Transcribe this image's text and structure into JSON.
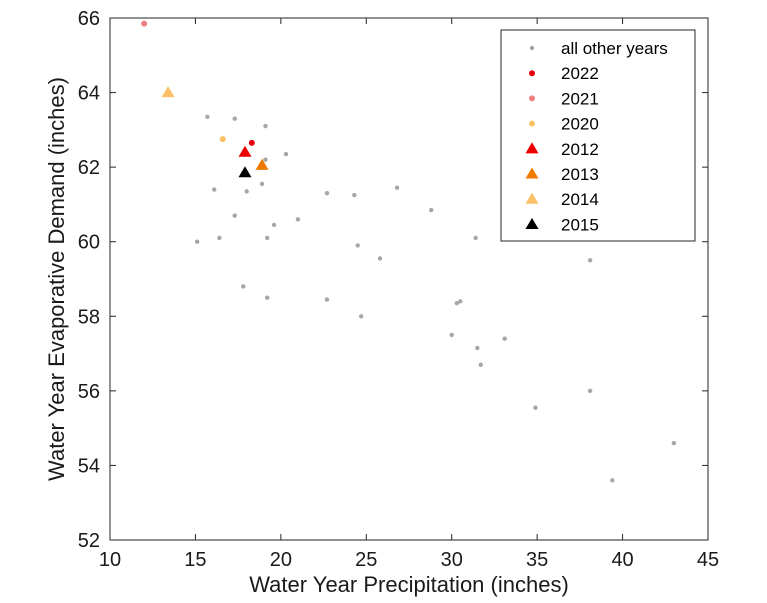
{
  "chart_data": {
    "type": "scatter",
    "xlabel": "Water Year Precipitation (inches)",
    "ylabel": "Water Year Evaporative Demand (inches)",
    "xlim": [
      10,
      45
    ],
    "ylim": [
      52,
      66
    ],
    "xticks": [
      10,
      15,
      20,
      25,
      30,
      35,
      40,
      45
    ],
    "yticks": [
      52,
      54,
      56,
      58,
      60,
      62,
      64,
      66
    ],
    "grid": false,
    "legend_position": "top-right",
    "series": [
      {
        "name": "all other years",
        "marker": "dot",
        "color": "#a6a6a6",
        "points": [
          [
            15.7,
            63.35
          ],
          [
            17.3,
            63.3
          ],
          [
            19.1,
            63.1
          ],
          [
            20.3,
            62.35
          ],
          [
            19.1,
            62.2
          ],
          [
            18.9,
            61.55
          ],
          [
            16.1,
            61.4
          ],
          [
            18.0,
            61.35
          ],
          [
            22.7,
            61.3
          ],
          [
            24.3,
            61.25
          ],
          [
            26.8,
            61.45
          ],
          [
            28.8,
            60.85
          ],
          [
            17.3,
            60.7
          ],
          [
            21.0,
            60.6
          ],
          [
            19.6,
            60.45
          ],
          [
            15.1,
            60.0
          ],
          [
            16.4,
            60.1
          ],
          [
            19.2,
            60.1
          ],
          [
            24.5,
            59.9
          ],
          [
            31.4,
            60.1
          ],
          [
            25.8,
            59.55
          ],
          [
            38.1,
            59.5
          ],
          [
            17.8,
            58.8
          ],
          [
            19.2,
            58.5
          ],
          [
            22.7,
            58.45
          ],
          [
            30.3,
            58.35
          ],
          [
            30.5,
            58.4
          ],
          [
            24.7,
            58.0
          ],
          [
            30.0,
            57.5
          ],
          [
            33.1,
            57.4
          ],
          [
            31.5,
            57.15
          ],
          [
            31.7,
            56.7
          ],
          [
            38.1,
            56.0
          ],
          [
            34.9,
            55.55
          ],
          [
            43.0,
            54.6
          ],
          [
            39.4,
            53.6
          ]
        ]
      },
      {
        "name": "2022",
        "marker": "dot",
        "color": "#e8000b",
        "points": [
          [
            18.3,
            62.65
          ]
        ]
      },
      {
        "name": "2021",
        "marker": "dot",
        "color": "#f08080",
        "points": [
          [
            12.0,
            65.85
          ]
        ]
      },
      {
        "name": "2020",
        "marker": "dot",
        "color": "#fbc165",
        "points": [
          [
            16.6,
            62.75
          ]
        ]
      },
      {
        "name": "2012",
        "marker": "triangle",
        "color": "#ee0000",
        "points": [
          [
            17.9,
            62.4
          ]
        ]
      },
      {
        "name": "2013",
        "marker": "triangle",
        "color": "#f07a00",
        "points": [
          [
            18.9,
            62.05
          ]
        ]
      },
      {
        "name": "2014",
        "marker": "triangle",
        "color": "#fbc168",
        "points": [
          [
            13.4,
            64.0
          ]
        ]
      },
      {
        "name": "2015",
        "marker": "triangle",
        "color": "#000000",
        "points": [
          [
            17.9,
            61.85
          ]
        ]
      }
    ]
  }
}
